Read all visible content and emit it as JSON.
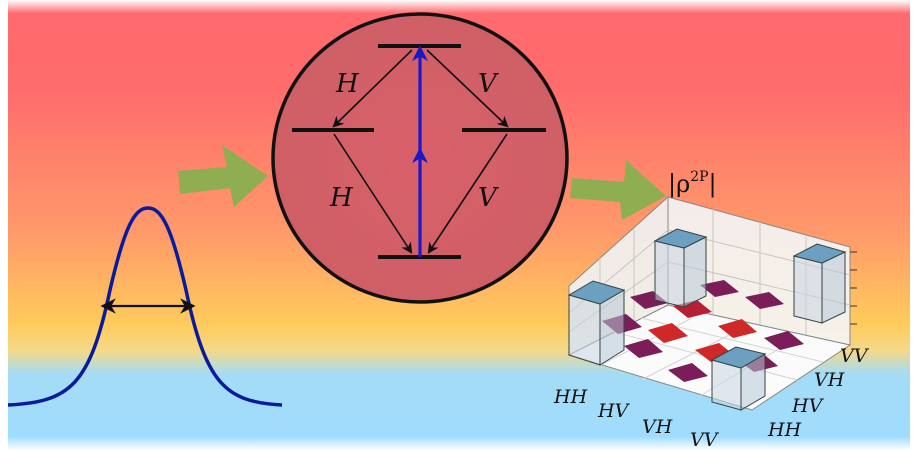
{
  "labels": {
    "left_upper": "H",
    "right_upper": "V",
    "left_lower": "H",
    "right_lower": "V",
    "density_title_prefix": "|ρ",
    "density_title_sup": "2P",
    "density_title_suffix": "|"
  },
  "axis_x": [
    "HH",
    "HV",
    "VH",
    "VV"
  ],
  "axis_y": [
    "HH",
    "HV",
    "VH",
    "VV"
  ],
  "colors": {
    "background_top": "#ff6868",
    "background_middle": "#ffcc55",
    "background_bottom": "#9fdcff",
    "arrow_green": "#8fae52",
    "pulse_blue": "#0a1a9c",
    "transition_blue": "#1a18c8",
    "diag_element": "#a43a5a",
    "offdiag_element": "#ce2828",
    "cube_top": "#6c9fc0"
  }
}
